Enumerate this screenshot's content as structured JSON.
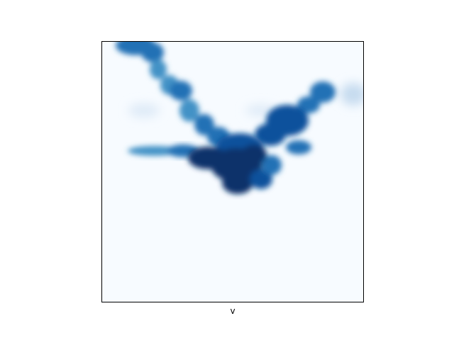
{
  "chart_data": {
    "type": "heatmap",
    "title": "",
    "xlabel": "v",
    "ylabel": "",
    "colormap": "Blues",
    "grid": false,
    "colorbar": false,
    "x_ticks": [],
    "y_ticks": [],
    "colors": {
      "background": "#f7fbff",
      "light": "#c6dbef",
      "medium": "#4292c6",
      "dark": "#08519c",
      "darkest": "#08306b",
      "frame": "#000000"
    }
  }
}
